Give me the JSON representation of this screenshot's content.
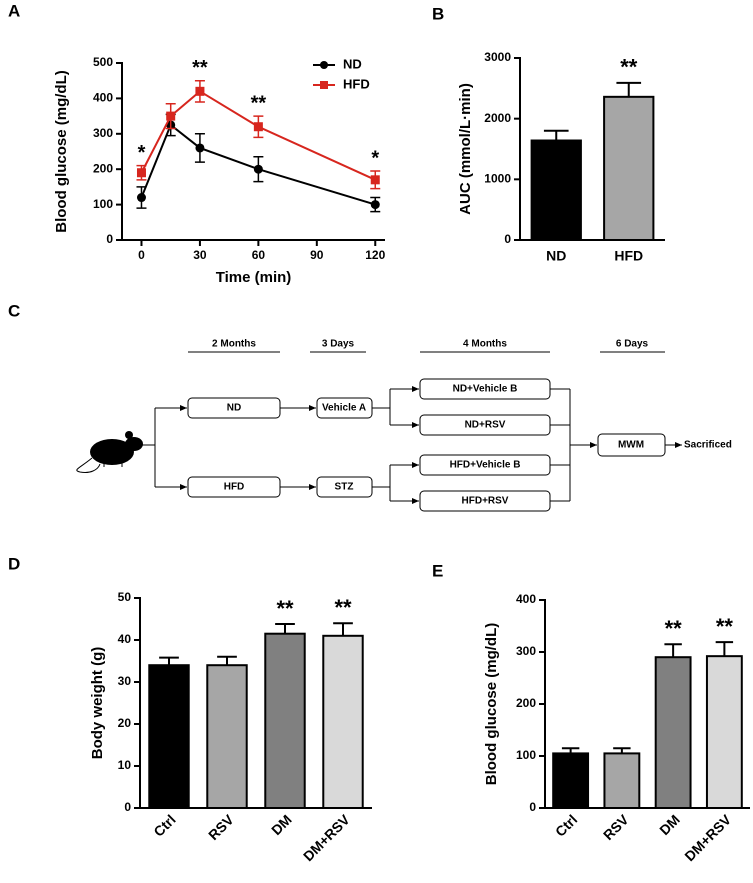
{
  "chart_data": [
    {
      "type": "line",
      "panel": "A",
      "ylabel": "Blood glucose (mg/dL)",
      "xlabel": "Time (min)",
      "x": [
        0,
        15,
        30,
        60,
        120
      ],
      "xlim": [
        -10,
        125
      ],
      "xticks": [
        0,
        30,
        60,
        90,
        120
      ],
      "ylim": [
        0,
        500
      ],
      "yticks": [
        0,
        100,
        200,
        300,
        400,
        500
      ],
      "legend": "upper right",
      "series": [
        {
          "name": "ND",
          "color": "#000000",
          "marker": "circle",
          "values": [
            120,
            325,
            260,
            200,
            100
          ],
          "errors": [
            30,
            30,
            40,
            35,
            20
          ],
          "significance": [
            null,
            null,
            null,
            null,
            null
          ]
        },
        {
          "name": "HFD",
          "color": "#d7261e",
          "marker": "square",
          "values": [
            190,
            350,
            420,
            320,
            170
          ],
          "errors": [
            20,
            35,
            30,
            30,
            25
          ],
          "significance": [
            "*",
            null,
            "**",
            "**",
            "*"
          ]
        }
      ]
    },
    {
      "type": "bar",
      "panel": "B",
      "ylabel": "AUC (mmol/L·min)",
      "categories": [
        "ND",
        "HFD"
      ],
      "values": [
        1640,
        2360
      ],
      "errors": [
        160,
        230
      ],
      "colors": [
        "#000000",
        "#a6a6a6"
      ],
      "significance": [
        null,
        "**"
      ],
      "ylim": [
        0,
        3000
      ],
      "yticks": [
        0,
        1000,
        2000,
        3000
      ],
      "xtick_rotation": 0
    },
    {
      "type": "bar",
      "panel": "D",
      "ylabel": "Body weight (g)",
      "categories": [
        "Ctrl",
        "RSV",
        "DM",
        "DM+RSV"
      ],
      "values": [
        34,
        34,
        41.5,
        41
      ],
      "errors": [
        1.8,
        2,
        2.3,
        3
      ],
      "colors": [
        "#000000",
        "#a6a6a6",
        "#808080",
        "#d9d9d9"
      ],
      "significance": [
        null,
        null,
        "**",
        "**"
      ],
      "ylim": [
        0,
        50
      ],
      "yticks": [
        0,
        10,
        20,
        30,
        40,
        50
      ],
      "xtick_rotation": -45
    },
    {
      "type": "bar",
      "panel": "E",
      "ylabel": "Blood glucose (mg/dL)",
      "categories": [
        "Ctrl",
        "RSV",
        "DM",
        "DM+RSV"
      ],
      "values": [
        105,
        105,
        290,
        292
      ],
      "errors": [
        10,
        10,
        25,
        27
      ],
      "colors": [
        "#000000",
        "#a6a6a6",
        "#808080",
        "#d9d9d9"
      ],
      "significance": [
        null,
        null,
        "**",
        "**"
      ],
      "ylim": [
        0,
        400
      ],
      "yticks": [
        0,
        100,
        200,
        300,
        400
      ],
      "xtick_rotation": -45
    }
  ],
  "diagram": {
    "panel": "C",
    "periods": [
      "2 Months",
      "3 Days",
      "4 Months",
      "6 Days"
    ],
    "nodes": [
      "ND",
      "HFD",
      "Vehicle A",
      "STZ",
      "ND+Vehicle B",
      "ND+RSV",
      "HFD+Vehicle B",
      "HFD+RSV",
      "MWM"
    ],
    "end": "Sacrificed"
  }
}
